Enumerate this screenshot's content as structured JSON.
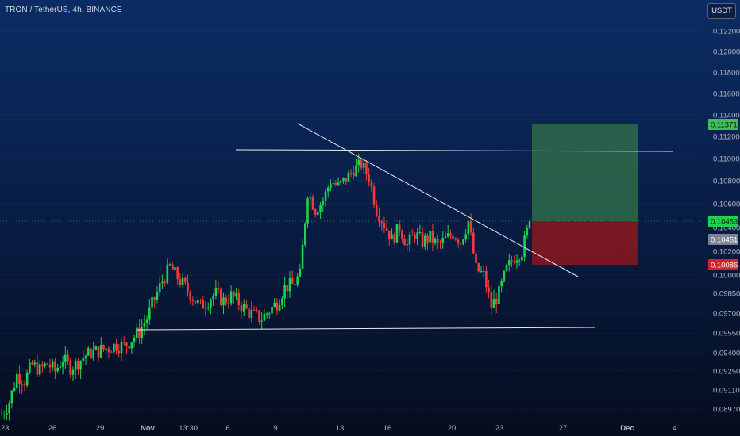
{
  "header": {
    "symbol_line": "TRON / TetherUS, 4h, BINANCE"
  },
  "currency_button": {
    "label": "USDT"
  },
  "colors": {
    "up": "#26a69a",
    "up_bright": "#1fd14c",
    "down": "#ef3b3b",
    "line": "#e6e9ef",
    "target": "#2e6b4a",
    "stop": "#8c1820"
  },
  "chart_data": {
    "type": "candlestick",
    "y_axis_labels": [
      "0.12200",
      "0.12000",
      "0.11800",
      "0.11600",
      "0.11400",
      "0.11200",
      "0.11000",
      "0.10800",
      "0.10600",
      "0.10400",
      "0.10200",
      "0.10000",
      "0.09850",
      "0.09700",
      "0.09550",
      "0.09400",
      "0.09250",
      "0.09110",
      "0.08970"
    ],
    "x_axis_labels": [
      "23",
      "26",
      "29",
      "Nov",
      "13:30",
      "6",
      "9",
      "13",
      "16",
      "20",
      "23",
      "27",
      "Dec",
      "4"
    ],
    "price_tags": [
      {
        "label": "0.11371",
        "kind": "target"
      },
      {
        "label": "0.10453",
        "kind": "last"
      },
      {
        "label": "0.10451",
        "kind": "entry"
      },
      {
        "label": "0.10086",
        "kind": "stop"
      }
    ],
    "close_path": [
      0.0893,
      0.0902,
      0.0922,
      0.0918,
      0.093,
      0.0926,
      0.0931,
      0.0925,
      0.0935,
      0.0928,
      0.0932,
      0.0938,
      0.094,
      0.0942,
      0.0944,
      0.0946,
      0.0945,
      0.095,
      0.0956,
      0.0966,
      0.0981,
      0.0995,
      0.1007,
      0.0998,
      0.099,
      0.0982,
      0.0975,
      0.098,
      0.0985,
      0.0979,
      0.0983,
      0.0978,
      0.0972,
      0.0968,
      0.0966,
      0.0972,
      0.0978,
      0.099,
      0.0992,
      0.1,
      0.107,
      0.1055,
      0.1063,
      0.108,
      0.1075,
      0.1082,
      0.109,
      0.1095,
      0.1083,
      0.1055,
      0.1043,
      0.103,
      0.104,
      0.1025,
      0.1035,
      0.1028,
      0.1032,
      0.1025,
      0.103,
      0.1035,
      0.1028,
      0.1045,
      0.1005,
      0.1,
      0.0975,
      0.0985,
      0.1005,
      0.1015,
      0.102,
      0.1045
    ]
  }
}
